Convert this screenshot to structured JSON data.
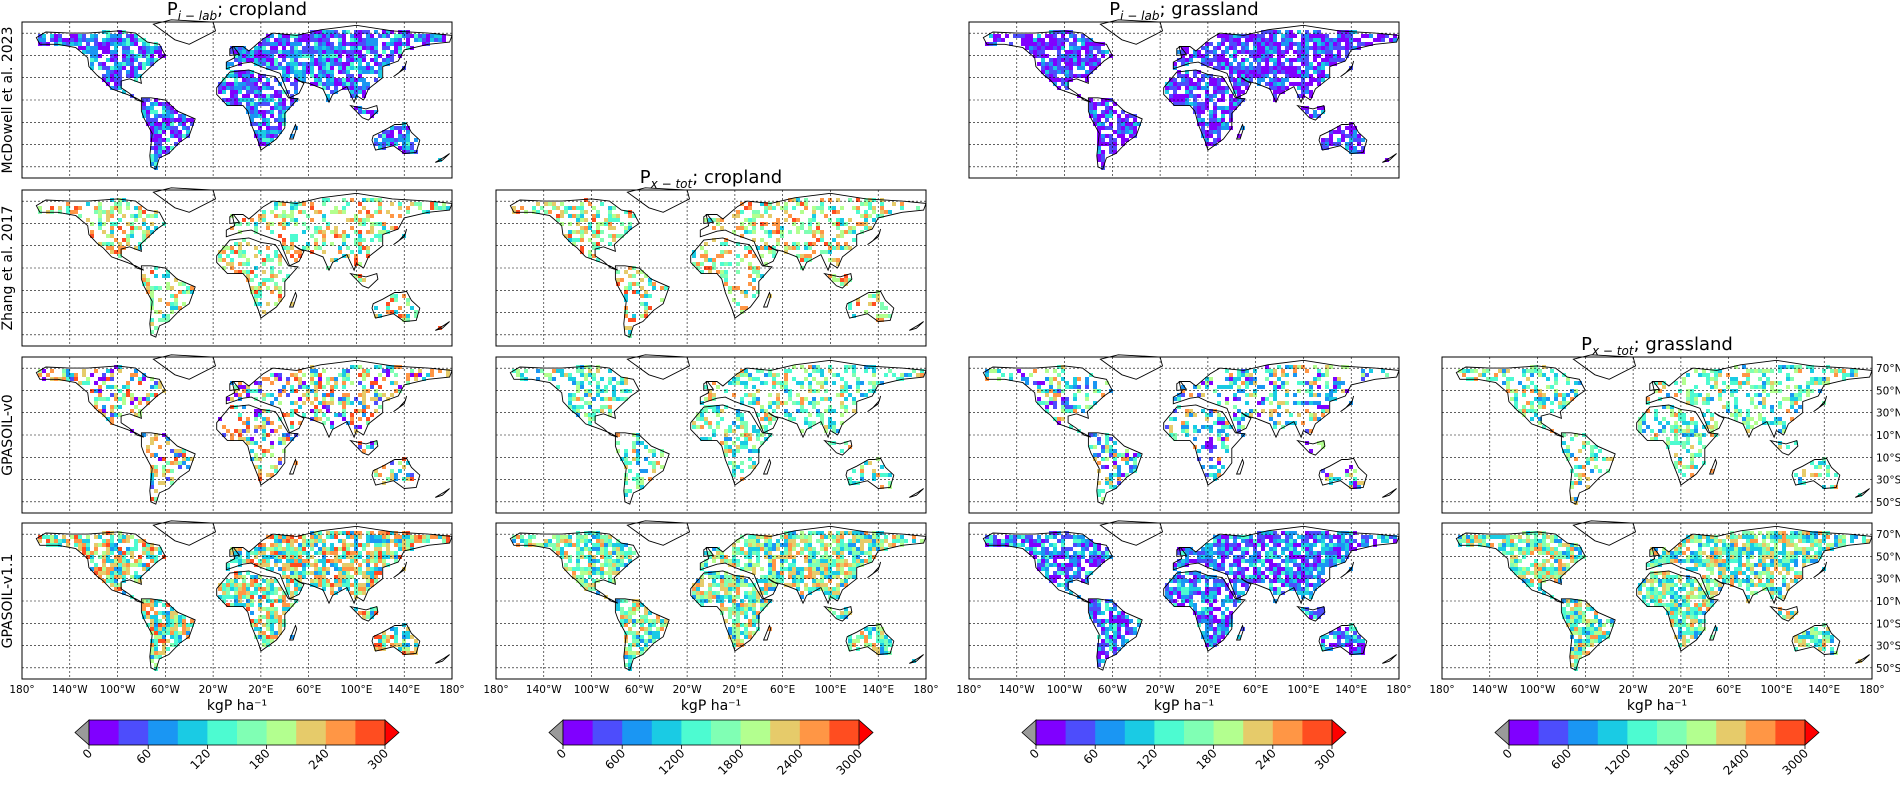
{
  "figure": {
    "column_titles": [
      {
        "main": "P",
        "sub": "i − lab",
        "suffix": "; cropland"
      },
      {
        "main": "P",
        "sub": "x − tot",
        "suffix": "; cropland"
      },
      {
        "main": "P",
        "sub": "i − lab",
        "suffix": "; grassland"
      },
      {
        "main": "P",
        "sub": "x − tot",
        "suffix": "; grassland"
      }
    ],
    "row_labels": [
      "McDowell et al. 2023",
      "Zhang et al. 2017",
      "GPASOIL-v0",
      "GPASOIL-v1.1"
    ],
    "lon_ticks": [
      "180°",
      "140°W",
      "100°W",
      "60°W",
      "20°W",
      "20°E",
      "60°E",
      "100°E",
      "140°E",
      "180°"
    ],
    "lat_ticks": [
      "70°N",
      "50°N",
      "30°N",
      "10°N",
      "10°S",
      "30°S",
      "50°S"
    ],
    "colorbar_label": "kgP ha⁻¹"
  },
  "chart_data": {
    "type": "heatmap",
    "description_free": true,
    "extent": {
      "lon": [
        -180,
        180
      ],
      "lat": [
        -60,
        80
      ]
    },
    "panels": [
      {
        "row": 0,
        "col": 0,
        "variable": "P_i-lab",
        "landuse": "cropland",
        "source": "McDowell et al. 2023",
        "present": true,
        "dominant_levels": [
          0,
          1,
          2,
          3
        ]
      },
      {
        "row": 0,
        "col": 1,
        "present": false
      },
      {
        "row": 0,
        "col": 2,
        "variable": "P_i-lab",
        "landuse": "grassland",
        "source": "McDowell et al. 2023",
        "present": true,
        "dominant_levels": [
          0,
          0,
          1,
          2
        ]
      },
      {
        "row": 0,
        "col": 3,
        "present": false
      },
      {
        "row": 1,
        "col": 0,
        "variable": "P_i-lab",
        "landuse": "cropland",
        "source": "Zhang et al. 2017",
        "present": true,
        "dominant_levels": [
          4,
          5,
          7,
          8
        ]
      },
      {
        "row": 1,
        "col": 1,
        "variable": "P_x-tot",
        "landuse": "cropland",
        "source": "Zhang et al. 2017",
        "present": true,
        "dominant_levels": [
          4,
          5,
          7,
          8
        ]
      },
      {
        "row": 1,
        "col": 2,
        "present": false
      },
      {
        "row": 1,
        "col": 3,
        "present": false
      },
      {
        "row": 2,
        "col": 0,
        "variable": "P_i-lab",
        "landuse": "cropland",
        "source": "GPASOIL-v0",
        "present": true,
        "dominant_levels": [
          1,
          4,
          7,
          8
        ]
      },
      {
        "row": 2,
        "col": 1,
        "variable": "P_x-tot",
        "landuse": "cropland",
        "source": "GPASOIL-v0",
        "present": true,
        "dominant_levels": [
          3,
          4,
          5,
          7
        ]
      },
      {
        "row": 2,
        "col": 2,
        "variable": "P_i-lab",
        "landuse": "grassland",
        "source": "GPASOIL-v0",
        "present": true,
        "dominant_levels": [
          1,
          3,
          4,
          7
        ]
      },
      {
        "row": 2,
        "col": 3,
        "variable": "P_x-tot",
        "landuse": "grassland",
        "source": "GPASOIL-v0",
        "present": true,
        "dominant_levels": [
          3,
          4,
          5,
          7
        ]
      },
      {
        "row": 3,
        "col": 0,
        "variable": "P_i-lab",
        "landuse": "cropland",
        "source": "GPASOIL-v1.1",
        "present": true,
        "dominant_levels": [
          3,
          4,
          7,
          8
        ]
      },
      {
        "row": 3,
        "col": 1,
        "variable": "P_x-tot",
        "landuse": "cropland",
        "source": "GPASOIL-v1.1",
        "present": true,
        "dominant_levels": [
          3,
          4,
          6,
          7
        ]
      },
      {
        "row": 3,
        "col": 2,
        "variable": "P_i-lab",
        "landuse": "grassland",
        "source": "GPASOIL-v1.1",
        "present": true,
        "dominant_levels": [
          0,
          1,
          2,
          3
        ]
      },
      {
        "row": 3,
        "col": 3,
        "variable": "P_x-tot",
        "landuse": "grassland",
        "source": "GPASOIL-v1.1",
        "present": true,
        "dominant_levels": [
          3,
          4,
          6,
          7
        ]
      }
    ],
    "colorbars": [
      {
        "col": 0,
        "ticks": [
          "0",
          "60",
          "120",
          "180",
          "240",
          "300"
        ],
        "range": [
          0,
          300
        ]
      },
      {
        "col": 1,
        "ticks": [
          "0",
          "600",
          "1200",
          "1800",
          "2400",
          "3000"
        ],
        "range": [
          0,
          3000
        ]
      },
      {
        "col": 2,
        "ticks": [
          "0",
          "60",
          "120",
          "180",
          "240",
          "300"
        ],
        "range": [
          0,
          300
        ]
      },
      {
        "col": 3,
        "ticks": [
          "0",
          "600",
          "1200",
          "1800",
          "2400",
          "3000"
        ],
        "range": [
          0,
          3000
        ]
      }
    ],
    "colormap": [
      "#8000ff",
      "#4d4dfc",
      "#1a96f3",
      "#1acbe4",
      "#4dfbd1",
      "#80ffb4",
      "#b3ff8f",
      "#e6cb6a",
      "#ff9645",
      "#ff4d20",
      "#ff0000"
    ],
    "extend_under_color": "#9a9a9a",
    "extend_over_color": "#ff0000"
  }
}
